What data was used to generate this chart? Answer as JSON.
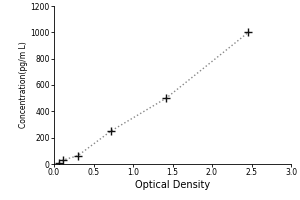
{
  "x": [
    0.06,
    0.12,
    0.3,
    0.72,
    1.42,
    2.46
  ],
  "y": [
    10,
    31.25,
    62.5,
    250,
    500,
    1000
  ],
  "xlabel": "Optical Density",
  "ylabel": "Concentration(pg/m L)",
  "xlim": [
    0,
    3
  ],
  "ylim": [
    0,
    1200
  ],
  "xticks": [
    0,
    0.5,
    1,
    1.5,
    2,
    2.5,
    3
  ],
  "yticks": [
    0,
    200,
    400,
    600,
    800,
    1000,
    1200
  ],
  "line_color": "#888888",
  "marker_color": "#111111",
  "background_color": "#ffffff",
  "tick_labelsize": 5.5,
  "xlabel_fontsize": 7,
  "ylabel_fontsize": 5.5
}
